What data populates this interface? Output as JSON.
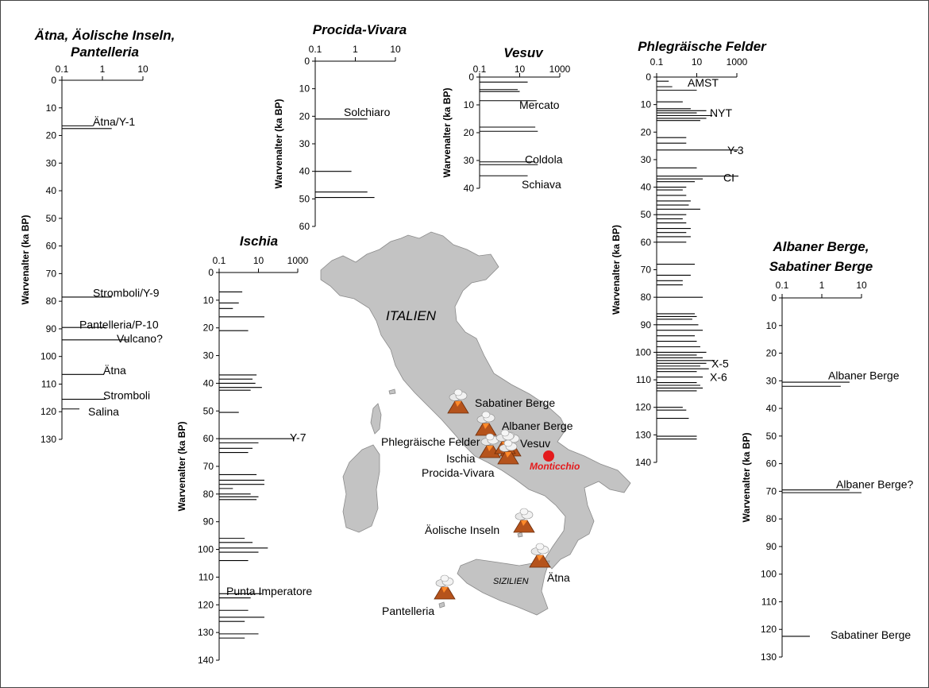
{
  "chart_data": [
    {
      "type": "bar",
      "orientation": "horizontal",
      "title_lines": [
        "Ätna, Äolische Inseln,",
        "Pantelleria"
      ],
      "ylabel": "Warvenalter (ka BP)",
      "x_scale": "log",
      "x_ticks": [
        "0.1",
        "1",
        "10"
      ],
      "xlim": [
        0.1,
        10
      ],
      "ylim": [
        0,
        130
      ],
      "y_ticks": [
        0,
        10,
        20,
        30,
        40,
        50,
        60,
        70,
        80,
        90,
        100,
        110,
        120,
        130
      ],
      "events": [
        {
          "age": 16.5,
          "value": 0.6
        },
        {
          "age": 17.5,
          "value": 1.7
        },
        {
          "age": 78.5,
          "value": 1.7
        },
        {
          "age": 89.5,
          "value": 1.2
        },
        {
          "age": 94,
          "value": 4.5
        },
        {
          "age": 106.5,
          "value": 1.1
        },
        {
          "age": 115.5,
          "value": 1.2
        },
        {
          "age": 119,
          "value": 0.27
        }
      ],
      "annotations": [
        {
          "text": "Ätna/Y-1",
          "age": 15
        },
        {
          "text": "Stromboli/Y-9",
          "age": 77
        },
        {
          "text": "Pantelleria/P-10",
          "age": 88.5
        },
        {
          "text": "Vulcano?",
          "age": 93.5
        },
        {
          "text": "Ätna",
          "age": 105
        },
        {
          "text": "Stromboli",
          "age": 114
        },
        {
          "text": "Salina",
          "age": 120
        }
      ]
    },
    {
      "type": "bar",
      "orientation": "horizontal",
      "title_lines": [
        "Procida-Vivara"
      ],
      "ylabel": "Warvenalter (ka BP)",
      "x_scale": "log",
      "x_ticks": [
        "0.1",
        "1",
        "10"
      ],
      "xlim": [
        0.1,
        10
      ],
      "ylim": [
        0,
        60
      ],
      "y_ticks": [
        0,
        10,
        20,
        30,
        40,
        50,
        60
      ],
      "events": [
        {
          "age": 21,
          "value": 2.0
        },
        {
          "age": 40,
          "value": 0.8
        },
        {
          "age": 47.5,
          "value": 2.0
        },
        {
          "age": 49.5,
          "value": 3.0
        }
      ],
      "annotations": [
        {
          "text": "Solchiaro",
          "age": 18.5
        }
      ]
    },
    {
      "type": "bar",
      "orientation": "horizontal",
      "title_lines": [
        "Vesuv"
      ],
      "ylabel": "Warvenalter (ka BP)",
      "x_scale": "log",
      "x_ticks": [
        "0.1",
        "10",
        "1000"
      ],
      "xlim": [
        0.1,
        1000
      ],
      "ylim": [
        0,
        40
      ],
      "y_ticks": [
        0,
        10,
        20,
        30,
        40
      ],
      "events": [
        {
          "age": 1.8,
          "value": 25
        },
        {
          "age": 4.5,
          "value": 8
        },
        {
          "age": 5.2,
          "value": 10
        },
        {
          "age": 8.5,
          "value": 70
        },
        {
          "age": 18,
          "value": 60
        },
        {
          "age": 19.5,
          "value": 80
        },
        {
          "age": 30.5,
          "value": 60
        },
        {
          "age": 31.5,
          "value": 80
        },
        {
          "age": 35.5,
          "value": 25
        }
      ],
      "annotations": [
        {
          "text": "Mercato",
          "age": 10
        },
        {
          "text": "Coldola",
          "age": 29.5
        },
        {
          "text": "Schiava",
          "age": 38.5
        }
      ]
    },
    {
      "type": "bar",
      "orientation": "horizontal",
      "title_lines": [
        "Phlegräische Felder"
      ],
      "ylabel": "Warvenalter (ka BP)",
      "x_scale": "log",
      "x_ticks": [
        "0.1",
        "10",
        "1000"
      ],
      "xlim": [
        0.1,
        1000
      ],
      "ylim": [
        0,
        140
      ],
      "y_ticks": [
        0,
        10,
        20,
        30,
        40,
        50,
        60,
        70,
        80,
        90,
        100,
        110,
        120,
        130,
        140
      ],
      "events": [
        {
          "age": 1.5,
          "value": 0.4
        },
        {
          "age": 3.5,
          "value": 0.6
        },
        {
          "age": 4.8,
          "value": 10
        },
        {
          "age": 9,
          "value": 2
        },
        {
          "age": 11.5,
          "value": 5
        },
        {
          "age": 12.2,
          "value": 30
        },
        {
          "age": 13,
          "value": 10
        },
        {
          "age": 14,
          "value": 60
        },
        {
          "age": 15,
          "value": 30
        },
        {
          "age": 15.8,
          "value": 15
        },
        {
          "age": 22,
          "value": 3
        },
        {
          "age": 24,
          "value": 3
        },
        {
          "age": 26.5,
          "value": 1200
        },
        {
          "age": 33,
          "value": 10
        },
        {
          "age": 36,
          "value": 1200
        },
        {
          "age": 37,
          "value": 20
        },
        {
          "age": 38,
          "value": 8
        },
        {
          "age": 40,
          "value": 3
        },
        {
          "age": 41,
          "value": 2
        },
        {
          "age": 43,
          "value": 3
        },
        {
          "age": 45,
          "value": 5
        },
        {
          "age": 46.5,
          "value": 4
        },
        {
          "age": 48,
          "value": 15
        },
        {
          "age": 50,
          "value": 3
        },
        {
          "age": 51.5,
          "value": 2
        },
        {
          "age": 53,
          "value": 3
        },
        {
          "age": 55,
          "value": 5
        },
        {
          "age": 56.5,
          "value": 3
        },
        {
          "age": 58,
          "value": 5
        },
        {
          "age": 60,
          "value": 3
        },
        {
          "age": 68,
          "value": 8
        },
        {
          "age": 72,
          "value": 5
        },
        {
          "age": 74,
          "value": 2
        },
        {
          "age": 75.5,
          "value": 2
        },
        {
          "age": 80,
          "value": 20
        },
        {
          "age": 86,
          "value": 8
        },
        {
          "age": 87,
          "value": 10
        },
        {
          "age": 88,
          "value": 6
        },
        {
          "age": 90,
          "value": 12
        },
        {
          "age": 92,
          "value": 20
        },
        {
          "age": 94,
          "value": 8
        },
        {
          "age": 96,
          "value": 10
        },
        {
          "age": 98,
          "value": 15
        },
        {
          "age": 100,
          "value": 30
        },
        {
          "age": 101,
          "value": 10
        },
        {
          "age": 102,
          "value": 20
        },
        {
          "age": 103,
          "value": 80
        },
        {
          "age": 104,
          "value": 30
        },
        {
          "age": 105,
          "value": 15
        },
        {
          "age": 106,
          "value": 40
        },
        {
          "age": 107,
          "value": 10
        },
        {
          "age": 109,
          "value": 20
        },
        {
          "age": 111,
          "value": 10
        },
        {
          "age": 112,
          "value": 15
        },
        {
          "age": 113,
          "value": 20
        },
        {
          "age": 114,
          "value": 10
        },
        {
          "age": 120,
          "value": 2
        },
        {
          "age": 121,
          "value": 3
        },
        {
          "age": 124,
          "value": 4
        },
        {
          "age": 130.5,
          "value": 10
        },
        {
          "age": 131.5,
          "value": 10
        }
      ],
      "annotations": [
        {
          "text": "AMST",
          "age": 2
        },
        {
          "text": "NYT",
          "age": 13
        },
        {
          "text": "Y-3",
          "age": 26.5
        },
        {
          "text": "CI",
          "age": 36.5
        },
        {
          "text": "X-5",
          "age": 104
        },
        {
          "text": "X-6",
          "age": 109
        }
      ]
    },
    {
      "type": "bar",
      "orientation": "horizontal",
      "title_lines": [
        "Ischia"
      ],
      "ylabel": "Warvenalter (ka BP)",
      "x_scale": "log",
      "x_ticks": [
        "0.1",
        "10",
        "1000"
      ],
      "xlim": [
        0.1,
        1000
      ],
      "ylim": [
        0,
        140
      ],
      "y_ticks": [
        0,
        10,
        20,
        30,
        40,
        50,
        60,
        70,
        80,
        90,
        100,
        110,
        120,
        130,
        140
      ],
      "events": [
        {
          "age": 7,
          "value": 1.5
        },
        {
          "age": 11,
          "value": 1
        },
        {
          "age": 13,
          "value": 0.5
        },
        {
          "age": 16,
          "value": 20
        },
        {
          "age": 21,
          "value": 3
        },
        {
          "age": 37,
          "value": 8
        },
        {
          "age": 38.5,
          "value": 5
        },
        {
          "age": 40,
          "value": 7
        },
        {
          "age": 41.5,
          "value": 15
        },
        {
          "age": 42.5,
          "value": 4
        },
        {
          "age": 50.5,
          "value": 1
        },
        {
          "age": 60,
          "value": 700
        },
        {
          "age": 61.5,
          "value": 10
        },
        {
          "age": 63.5,
          "value": 5
        },
        {
          "age": 65,
          "value": 3
        },
        {
          "age": 73,
          "value": 8
        },
        {
          "age": 75,
          "value": 20
        },
        {
          "age": 76.5,
          "value": 20
        },
        {
          "age": 78,
          "value": 0.5
        },
        {
          "age": 80,
          "value": 4
        },
        {
          "age": 81,
          "value": 10
        },
        {
          "age": 82,
          "value": 8
        },
        {
          "age": 96,
          "value": 2
        },
        {
          "age": 97.5,
          "value": 5
        },
        {
          "age": 99.5,
          "value": 30
        },
        {
          "age": 101,
          "value": 10
        },
        {
          "age": 104,
          "value": 3
        },
        {
          "age": 116,
          "value": 15
        },
        {
          "age": 117.5,
          "value": 4
        },
        {
          "age": 122,
          "value": 3
        },
        {
          "age": 124.5,
          "value": 20
        },
        {
          "age": 126,
          "value": 2
        },
        {
          "age": 130.5,
          "value": 10
        },
        {
          "age": 132,
          "value": 2
        }
      ],
      "annotations": [
        {
          "text": "Y-7",
          "age": 59.5
        },
        {
          "text": "Punta Imperatore",
          "age": 115
        }
      ]
    },
    {
      "type": "bar",
      "orientation": "horizontal",
      "title_lines": [
        "Albaner Berge,",
        "Sabatiner Berge"
      ],
      "ylabel": "Warvenalter (ka BP)",
      "x_scale": "log",
      "x_ticks": [
        "0.1",
        "1",
        "10"
      ],
      "xlim": [
        0.1,
        10
      ],
      "ylim": [
        0,
        130
      ],
      "y_ticks": [
        0,
        10,
        20,
        30,
        40,
        50,
        60,
        70,
        80,
        90,
        100,
        110,
        120,
        130
      ],
      "events": [
        {
          "age": 30.5,
          "value": 5
        },
        {
          "age": 32,
          "value": 3
        },
        {
          "age": 69.5,
          "value": 5
        },
        {
          "age": 70.5,
          "value": 10
        },
        {
          "age": 122.5,
          "value": 0.5
        }
      ],
      "annotations": [
        {
          "text": "Albaner Berge",
          "age": 28
        },
        {
          "text": "Albaner Berge?",
          "age": 67.5
        },
        {
          "text": "Sabatiner Berge",
          "age": 122
        }
      ]
    }
  ],
  "map": {
    "country_label": "ITALIEN",
    "island_label": "SIZILIEN",
    "site_label": "Monticchio",
    "site_color": "#e41a1c",
    "land_color": "#c3c3c3",
    "volcano_labels": [
      "Sabatiner Berge",
      "Albaner Berge",
      "Phlegräische Felder",
      "Vesuv",
      "Ischia",
      "Procida-Vivara",
      "Äolische Inseln",
      "Ätna",
      "Pantelleria"
    ]
  }
}
